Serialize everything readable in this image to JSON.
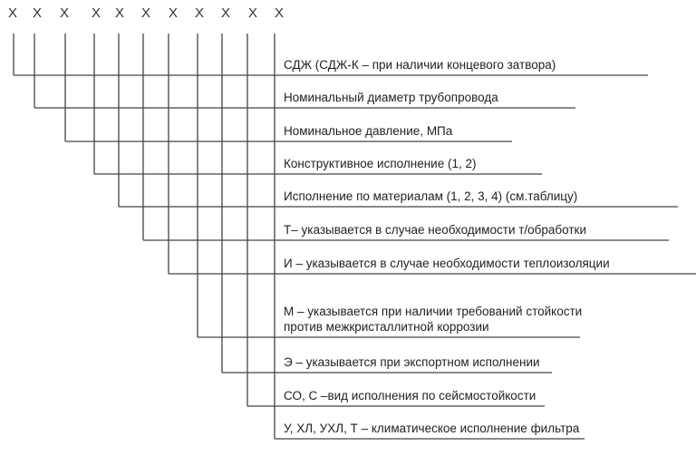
{
  "code_positions": [
    "Х",
    "Х",
    "Х",
    "Х",
    "Х",
    "Х",
    "Х",
    "Х",
    "Х",
    "Х",
    "Х"
  ],
  "items": [
    {
      "label": "СДЖ (СДЖ-К – при наличии концевого затвора)"
    },
    {
      "label": "Номинальный диаметр трубопровода"
    },
    {
      "label": "Номинальное давление, МПа"
    },
    {
      "label": "Конструктивное исполнение (1, 2)"
    },
    {
      "label": "Исполнение по материалам (1, 2, 3, 4) (см.таблицу)"
    },
    {
      "label": "Т– указывается в случае необходимости т/обработки"
    },
    {
      "label": "И – указывается в случае необходимости теплоизоляции"
    },
    {
      "label": "М – указывается при наличии требований стойкости\nпротив межкристаллитной коррозии"
    },
    {
      "label": "Э – указывается при экспортном исполнении"
    },
    {
      "label": "СО, С –вид исполнения по сейсмостойкости"
    },
    {
      "label": "У, ХЛ, УХЛ, Т – климатическое исполнение фильтра"
    }
  ],
  "colors": {
    "line": "#444444",
    "text": "#222222"
  }
}
